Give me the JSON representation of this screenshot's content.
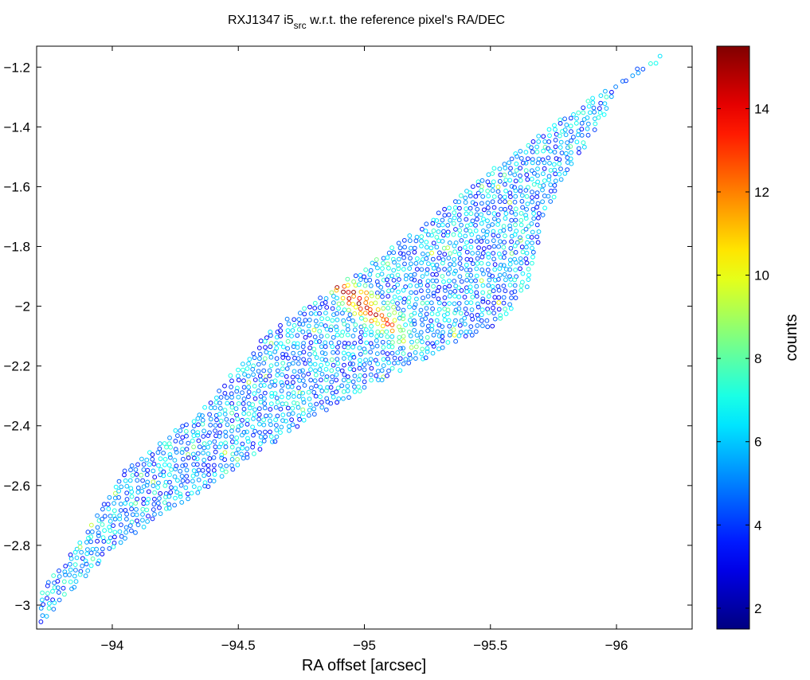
{
  "chart_data": {
    "type": "scatter",
    "title": {
      "prefix": "RXJ1347 i5",
      "subscript": "src",
      "suffix": " w.r.t. the reference pixel's RA/DEC"
    },
    "xlabel": "RA offset [arcsec]",
    "ylabel": "",
    "xlim": [
      -93.7,
      -96.3
    ],
    "ylim": [
      -3.08,
      -1.13
    ],
    "x_ticks": [
      -94,
      -94.5,
      -95,
      -95.5,
      -96
    ],
    "x_tick_labels": [
      "−94",
      "−94.5",
      "−95",
      "−95.5",
      "−96"
    ],
    "y_ticks": [
      -1.2,
      -1.4,
      -1.6,
      -1.8,
      -2,
      -2.2,
      -2.4,
      -2.6,
      -2.8,
      -3
    ],
    "y_tick_labels": [
      "−1.2",
      "−1.4",
      "−1.6",
      "−1.8",
      "−2",
      "−2.2",
      "−2.4",
      "−2.6",
      "−2.8",
      "−3"
    ],
    "marker": "open-circle",
    "region_outline": [
      [
        -93.7,
        -3.07
      ],
      [
        -93.72,
        -2.95
      ],
      [
        -93.88,
        -2.78
      ],
      [
        -94.05,
        -2.55
      ],
      [
        -94.35,
        -2.35
      ],
      [
        -94.62,
        -2.08
      ],
      [
        -94.95,
        -1.9
      ],
      [
        -95.2,
        -1.75
      ],
      [
        -95.45,
        -1.58
      ],
      [
        -95.7,
        -1.42
      ],
      [
        -96.05,
        -1.22
      ],
      [
        -96.2,
        -1.15
      ],
      [
        -96.2,
        -1.17
      ],
      [
        -96.0,
        -1.27
      ],
      [
        -95.95,
        -1.37
      ],
      [
        -95.72,
        -1.68
      ],
      [
        -95.65,
        -1.93
      ],
      [
        -95.55,
        -2.05
      ],
      [
        -95.3,
        -2.15
      ],
      [
        -94.95,
        -2.3
      ],
      [
        -94.65,
        -2.45
      ],
      [
        -94.3,
        -2.65
      ],
      [
        -94.05,
        -2.78
      ],
      [
        -93.8,
        -2.98
      ],
      [
        -93.72,
        -3.07
      ]
    ],
    "hotspot": {
      "ra": -95.0,
      "dec": -2.0,
      "peak_counts": 15
    },
    "colorbar": {
      "label": "counts",
      "range": [
        1.5,
        15.5
      ],
      "ticks": [
        2,
        4,
        6,
        8,
        10,
        12,
        14
      ],
      "tick_labels": [
        "2",
        "4",
        "6",
        "8",
        "10",
        "12",
        "14"
      ],
      "colormap": "jet"
    }
  }
}
